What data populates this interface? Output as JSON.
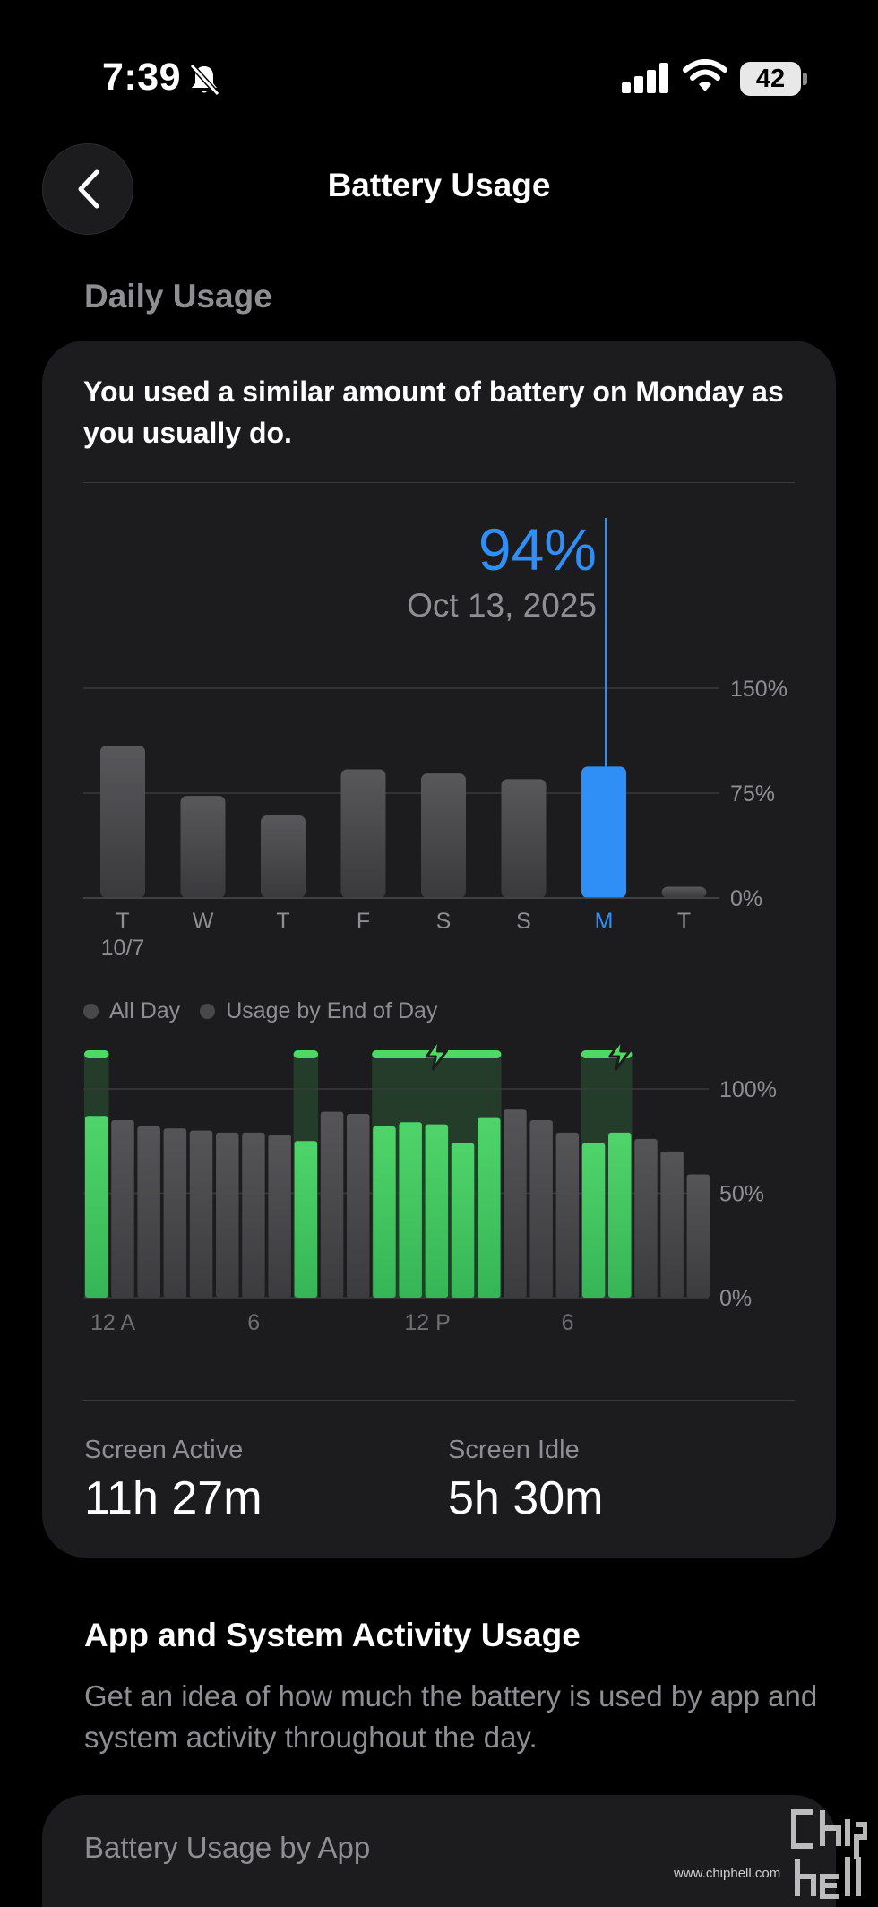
{
  "status_bar": {
    "time": "7:39",
    "battery_level": "42"
  },
  "nav": {
    "title": "Battery Usage"
  },
  "daily_usage": {
    "section_label": "Daily Usage",
    "summary": "You used a similar amount of battery on Monday as you usually do.",
    "selected": {
      "value": "94%",
      "date": "Oct 13, 2025"
    }
  },
  "chart_data": [
    {
      "type": "bar",
      "categories": [
        "T",
        "W",
        "T",
        "F",
        "S",
        "S",
        "M",
        "T"
      ],
      "sublabels": [
        "10/7",
        "",
        "",
        "",
        "",
        "",
        "",
        ""
      ],
      "values": [
        109,
        73,
        59,
        92,
        89,
        85,
        94,
        8
      ],
      "highlight_index": 6,
      "highlight_color": "#2f8ff7",
      "bar_color": "#4a4a4d",
      "ylim": [
        0,
        150
      ],
      "yticks": [
        0,
        75,
        150
      ],
      "ytick_labels": [
        "0%",
        "75%",
        "150%"
      ]
    },
    {
      "type": "bar",
      "x": [
        0,
        1,
        2,
        3,
        4,
        5,
        6,
        7,
        8,
        9,
        10,
        11,
        12,
        13,
        14,
        15,
        16,
        17,
        18,
        19,
        20,
        21,
        22,
        23
      ],
      "values": [
        87,
        85,
        82,
        81,
        80,
        79,
        79,
        78,
        75,
        89,
        88,
        82,
        84,
        83,
        74,
        86,
        90,
        85,
        79,
        74,
        79,
        76,
        70,
        59
      ],
      "charging_hours": [
        0,
        8,
        11,
        12,
        13,
        14,
        15,
        19,
        20
      ],
      "charging_bolt_hours": [
        13,
        20
      ],
      "charge_color": "#4cd964",
      "bar_color": "#4a4a4d",
      "ylim": [
        0,
        100
      ],
      "yticks": [
        0,
        50,
        100
      ],
      "ytick_labels": [
        "0%",
        "50%",
        "100%"
      ],
      "xtick_labels": [
        {
          "hour": 0,
          "label": "12 A"
        },
        {
          "hour": 6,
          "label": "6"
        },
        {
          "hour": 12,
          "label": "12 P"
        },
        {
          "hour": 18,
          "label": "6"
        }
      ]
    }
  ],
  "legend": {
    "all_day": "All Day",
    "usage_eod": "Usage by End of Day"
  },
  "stats": {
    "screen_active_label": "Screen Active",
    "screen_active_value": "11h 27m",
    "screen_idle_label": "Screen Idle",
    "screen_idle_value": "5h 30m"
  },
  "activity": {
    "title": "App and System Activity Usage",
    "description": "Get an idea of how much the battery is used by app and system activity throughout the day."
  },
  "by_app": {
    "label": "Battery Usage by App"
  },
  "watermark": {
    "url": "www.chiphell.com"
  }
}
